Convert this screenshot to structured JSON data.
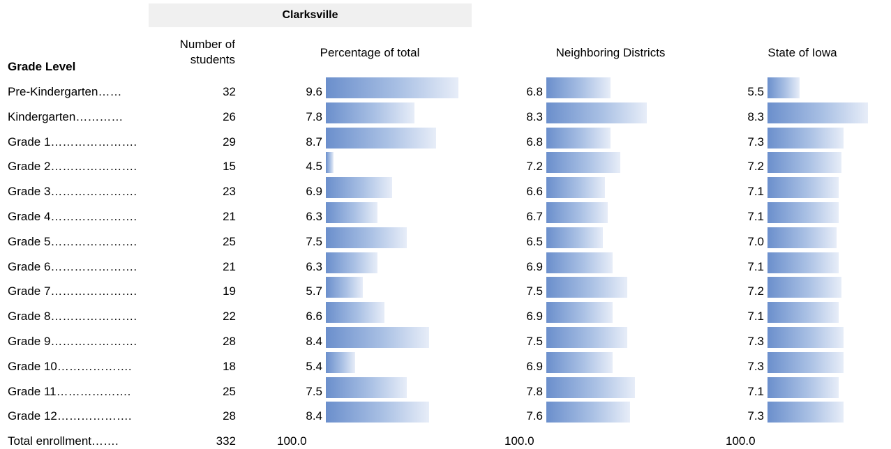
{
  "header": {
    "district_name": "Clarksville",
    "grade_level_label": "Grade Level",
    "number_of_students_label": "Number of\nstudents",
    "percentage_label": "Percentage of total",
    "neighboring_label": "Neighboring Districts",
    "state_label": "State of Iowa"
  },
  "colors": {
    "bar_start": "#6b8fcc",
    "bar_end": "#e7edf8",
    "header_band": "#f0f0f0"
  },
  "chart_data": {
    "type": "table",
    "title": "Clarksville",
    "columns": [
      "Grade Level",
      "Number of students",
      "Percentage of total",
      "Neighboring Districts",
      "State of Iowa"
    ],
    "rows": [
      {
        "grade": "Pre-Kindergarten……",
        "students": "32",
        "pct": "9.6",
        "neighbor": "6.8",
        "state": "5.5"
      },
      {
        "grade": "Kindergarten…………",
        "students": "26",
        "pct": "7.8",
        "neighbor": "8.3",
        "state": "8.3"
      },
      {
        "grade": "Grade 1………………….",
        "students": "29",
        "pct": "8.7",
        "neighbor": "6.8",
        "state": "7.3"
      },
      {
        "grade": "Grade 2………………….",
        "students": "15",
        "pct": "4.5",
        "neighbor": "7.2",
        "state": "7.2"
      },
      {
        "grade": "Grade 3………………….",
        "students": "23",
        "pct": "6.9",
        "neighbor": "6.6",
        "state": "7.1"
      },
      {
        "grade": "Grade 4………………….",
        "students": "21",
        "pct": "6.3",
        "neighbor": "6.7",
        "state": "7.1"
      },
      {
        "grade": "Grade 5………………….",
        "students": "25",
        "pct": "7.5",
        "neighbor": "6.5",
        "state": "7.0"
      },
      {
        "grade": "Grade 6………………….",
        "students": "21",
        "pct": "6.3",
        "neighbor": "6.9",
        "state": "7.1"
      },
      {
        "grade": "Grade 7………………….",
        "students": "19",
        "pct": "5.7",
        "neighbor": "7.5",
        "state": "7.2"
      },
      {
        "grade": "Grade 8………………….",
        "students": "22",
        "pct": "6.6",
        "neighbor": "6.9",
        "state": "7.1"
      },
      {
        "grade": "Grade 9………………….",
        "students": "28",
        "pct": "8.4",
        "neighbor": "7.5",
        "state": "7.3"
      },
      {
        "grade": "Grade 10……………….",
        "students": "18",
        "pct": "5.4",
        "neighbor": "6.9",
        "state": "7.3"
      },
      {
        "grade": "Grade 11……………….",
        "students": "25",
        "pct": "7.5",
        "neighbor": "7.8",
        "state": "7.1"
      },
      {
        "grade": "Grade 12……………….",
        "students": "28",
        "pct": "8.4",
        "neighbor": "7.6",
        "state": "7.3"
      }
    ],
    "total": {
      "label": "Total enrollment…….",
      "students": "332",
      "pct": "100.0",
      "neighbor": "100.0",
      "state": "100.0"
    }
  }
}
